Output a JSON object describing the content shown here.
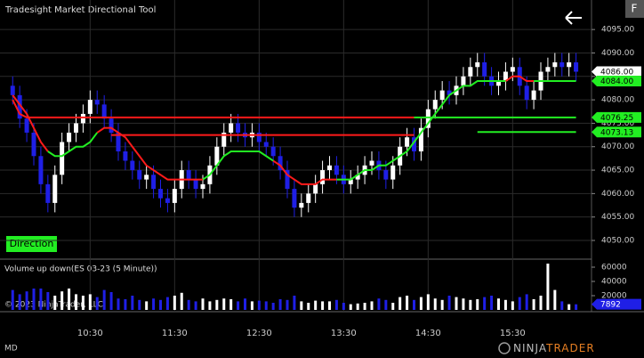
{
  "title": "Tradesight Market Directional Tool",
  "buttons": {
    "f": "F",
    "direction": "Direction"
  },
  "copyright": "© 2023 NinjaTrader, LLC",
  "footer_left": "MD",
  "logo": [
    "NINJA",
    "TRADER"
  ],
  "chart_data": [
    {
      "type": "candlestick",
      "xlim": [
        -1.8,
        82.2
      ],
      "xticks": [
        {
          "value": 11,
          "label": "10:30"
        },
        {
          "value": 23,
          "label": "11:30"
        },
        {
          "value": 35,
          "label": "12:30"
        },
        {
          "value": 47,
          "label": "13:30"
        },
        {
          "value": 59,
          "label": "14:30"
        },
        {
          "value": 71,
          "label": "15:30"
        }
      ],
      "ylim": [
        4046.2,
        4101.3
      ],
      "yticks": [
        {
          "value": 4050,
          "label": "4050.00"
        },
        {
          "value": 4055,
          "label": "4055.00"
        },
        {
          "value": 4060,
          "label": "4060.00"
        },
        {
          "value": 4065,
          "label": "4065.00"
        },
        {
          "value": 4070,
          "label": "4070.00"
        },
        {
          "value": 4075,
          "label": "4075.00"
        },
        {
          "value": 4080,
          "label": "4080.00"
        },
        {
          "value": 4085,
          "label": "4085.00"
        },
        {
          "value": 4090,
          "label": "4090.00"
        },
        {
          "value": 4095,
          "label": "4095.00"
        }
      ],
      "grid": true,
      "up_color": "#ffffff",
      "down_color": "#1f1fe6",
      "open": [
        4083,
        4081,
        4076,
        4073,
        4068,
        4062,
        4058,
        4064,
        4071,
        4073,
        4075,
        4077,
        4080,
        4079,
        4076,
        4073,
        4069,
        4067,
        4065,
        4063,
        4064,
        4061,
        4059,
        4058,
        4061,
        4065,
        4063,
        4061,
        4062,
        4066,
        4070,
        4073,
        4075,
        4073,
        4072,
        4073,
        4071,
        4070,
        4068,
        4065,
        4061,
        4057,
        4058,
        4060,
        4062,
        4065,
        4066,
        4064,
        4062,
        4063,
        4064,
        4066,
        4067,
        4065,
        4063,
        4066,
        4070,
        4072,
        4069,
        4074,
        4078,
        4080,
        4082,
        4081,
        4083,
        4085,
        4087,
        4088,
        4085,
        4083,
        4084,
        4086,
        4087,
        4083,
        4080,
        4082,
        4086,
        4087,
        4088,
        4087,
        4088
      ],
      "high": [
        4085,
        4083,
        4078,
        4075,
        4070,
        4064,
        4066,
        4073,
        4075,
        4077,
        4079,
        4082,
        4082,
        4081,
        4078,
        4075,
        4071,
        4069,
        4067,
        4066,
        4066,
        4063,
        4061,
        4063,
        4067,
        4067,
        4065,
        4064,
        4068,
        4072,
        4075,
        4077,
        4077,
        4075,
        4075,
        4075,
        4073,
        4072,
        4070,
        4067,
        4063,
        4060,
        4062,
        4064,
        4067,
        4068,
        4068,
        4066,
        4065,
        4066,
        4068,
        4069,
        4069,
        4067,
        4068,
        4072,
        4074,
        4074,
        4076,
        4080,
        4082,
        4084,
        4084,
        4085,
        4087,
        4089,
        4090,
        4090,
        4087,
        4086,
        4088,
        4089,
        4089,
        4085,
        4084,
        4088,
        4089,
        4090,
        4090,
        4090,
        4090
      ],
      "low": [
        4079,
        4074,
        4071,
        4066,
        4060,
        4056,
        4056,
        4062,
        4069,
        4071,
        4073,
        4075,
        4077,
        4074,
        4071,
        4067,
        4065,
        4063,
        4061,
        4061,
        4059,
        4057,
        4056,
        4056,
        4059,
        4061,
        4059,
        4059,
        4060,
        4064,
        4068,
        4071,
        4071,
        4070,
        4070,
        4069,
        4068,
        4066,
        4063,
        4059,
        4055,
        4055,
        4056,
        4058,
        4060,
        4063,
        4062,
        4060,
        4060,
        4061,
        4062,
        4064,
        4063,
        4061,
        4061,
        4064,
        4068,
        4067,
        4067,
        4072,
        4076,
        4078,
        4079,
        4079,
        4081,
        4083,
        4085,
        4083,
        4081,
        4081,
        4082,
        4084,
        4081,
        4078,
        4078,
        4080,
        4084,
        4085,
        4085,
        4085,
        4084
      ],
      "close": [
        4081,
        4076,
        4073,
        4068,
        4062,
        4058,
        4064,
        4071,
        4073,
        4075,
        4077,
        4080,
        4079,
        4076,
        4073,
        4069,
        4067,
        4065,
        4063,
        4064,
        4061,
        4059,
        4058,
        4061,
        4065,
        4063,
        4061,
        4062,
        4066,
        4070,
        4073,
        4075,
        4073,
        4072,
        4073,
        4071,
        4070,
        4068,
        4065,
        4061,
        4057,
        4058,
        4060,
        4062,
        4065,
        4066,
        4064,
        4062,
        4063,
        4064,
        4066,
        4067,
        4065,
        4063,
        4066,
        4070,
        4072,
        4069,
        4074,
        4078,
        4080,
        4082,
        4081,
        4083,
        4085,
        4087,
        4088,
        4085,
        4083,
        4084,
        4086,
        4087,
        4083,
        4080,
        4082,
        4086,
        4087,
        4088,
        4087,
        4088,
        4086
      ],
      "lines": [
        {
          "color": "#ff1a1a",
          "values": [
            4080,
            4077,
            4076.25,
            4076.25,
            4076.25,
            4076.25,
            4076.25,
            4076.25,
            4076.25,
            4076.25,
            4076.25,
            4076.25,
            4076.25,
            4076.25,
            4076.25,
            4076.25,
            4076.25,
            4076.25,
            4076.25,
            4076.25,
            4076.25,
            4076.25,
            4076.25,
            4076.25,
            4076.25,
            4076.25,
            4076.25,
            4076.25,
            4076.25,
            4076.25,
            4076.25,
            4076.25,
            4076.25,
            4076.25,
            4076.25,
            4076.25,
            4076.25,
            4076.25,
            4076.25,
            4076.25,
            4076.25,
            4076.25,
            4076.25,
            4076.25,
            4076.25,
            4076.25,
            4076.25,
            4076.25,
            4076.25,
            4076.25,
            4076.25,
            4076.25,
            4076.25,
            4076.25,
            4076.25,
            4076.25,
            4076.25,
            4076.25,
            null,
            null,
            null,
            null,
            null,
            null,
            null,
            null,
            null,
            null,
            null,
            null,
            null,
            null,
            null,
            null,
            null,
            null,
            null,
            null,
            null,
            null,
            null
          ]
        },
        {
          "color": "#22ee22",
          "values": [
            null,
            null,
            null,
            null,
            null,
            null,
            null,
            null,
            null,
            null,
            null,
            null,
            null,
            null,
            null,
            null,
            null,
            null,
            null,
            null,
            null,
            null,
            null,
            null,
            null,
            null,
            null,
            null,
            null,
            null,
            null,
            null,
            null,
            null,
            null,
            null,
            null,
            null,
            null,
            null,
            null,
            null,
            null,
            null,
            null,
            null,
            null,
            null,
            null,
            null,
            null,
            null,
            null,
            null,
            null,
            null,
            null,
            4076.25,
            4076.25,
            4076.25,
            4076.25,
            4076.25,
            4076.25,
            4076.25,
            4076.25,
            4076.25,
            4076.25,
            4076.25,
            4076.25,
            4076.25,
            4076.25,
            4076.25,
            4076.25,
            4076.25,
            4076.25,
            4076.25,
            4076.25,
            4076.25,
            4076.25,
            4076.25,
            4076.25
          ]
        },
        {
          "color": "#ff1a1a",
          "values": [
            null,
            null,
            null,
            null,
            null,
            null,
            null,
            null,
            null,
            null,
            null,
            null,
            null,
            null,
            4072.5,
            4072.5,
            4072.5,
            4072.5,
            4072.5,
            4072.5,
            4072.5,
            4072.5,
            4072.5,
            4072.5,
            4072.5,
            4072.5,
            4072.5,
            4072.5,
            4072.5,
            4072.5,
            4072.5,
            4072.5,
            4072.5,
            4072.5,
            4072.5,
            4072.5,
            4072.5,
            4072.5,
            4072.5,
            4072.5,
            4072.5,
            4072.5,
            4072.5,
            4072.5,
            4072.5,
            4072.5,
            4072.5,
            4072.5,
            4072.5,
            4072.5,
            4072.5,
            4072.5,
            4072.5,
            4072.5,
            4072.5,
            4072.5,
            4072.5,
            4072.5,
            null,
            null,
            null,
            null,
            null,
            null,
            null,
            null,
            null,
            null,
            null,
            null,
            null,
            null,
            null,
            null,
            null,
            null,
            null,
            null,
            null,
            null,
            null
          ]
        },
        {
          "color": "#22ee22",
          "values": [
            null,
            null,
            null,
            null,
            null,
            null,
            null,
            null,
            null,
            null,
            null,
            null,
            null,
            null,
            null,
            null,
            null,
            null,
            null,
            null,
            null,
            null,
            null,
            null,
            null,
            null,
            null,
            null,
            null,
            null,
            null,
            null,
            null,
            null,
            null,
            null,
            null,
            null,
            null,
            null,
            null,
            null,
            null,
            null,
            null,
            null,
            null,
            null,
            null,
            null,
            null,
            null,
            null,
            null,
            null,
            null,
            null,
            null,
            null,
            null,
            null,
            null,
            null,
            null,
            null,
            null,
            4073.13,
            4073.13,
            4073.13,
            4073.13,
            4073.13,
            4073.13,
            4073.13,
            4073.13,
            4073.13,
            4073.13,
            4073.13,
            4073.13,
            4073.13,
            4073.13,
            4073.13
          ]
        },
        {
          "color": "#ff1a1a",
          "values": [
            4081,
            4079,
            4077,
            4074,
            4071,
            4069,
            null,
            null,
            null,
            null,
            null,
            null,
            4073,
            4074,
            4074,
            4073,
            4072,
            4070,
            4068,
            4066,
            4065,
            4064,
            4063,
            4063,
            4063,
            4063,
            4063,
            4063,
            null,
            null,
            null,
            null,
            null,
            null,
            null,
            null,
            null,
            4067,
            4066,
            4064,
            4063,
            4062,
            4062,
            4062,
            4063,
            4063,
            4063,
            null,
            null,
            null,
            null,
            null,
            null,
            null,
            null,
            null,
            null,
            null,
            null,
            null,
            null,
            null,
            null,
            null,
            null,
            null,
            null,
            null,
            null,
            null,
            4084,
            4085,
            4085,
            4084,
            4084,
            null,
            null,
            null,
            null,
            null,
            null
          ]
        },
        {
          "color": "#22ee22",
          "values": [
            null,
            null,
            null,
            null,
            null,
            4069,
            4068,
            4068,
            4069,
            4070,
            4070,
            4071,
            4073,
            null,
            null,
            null,
            null,
            null,
            null,
            null,
            null,
            null,
            null,
            null,
            null,
            null,
            null,
            4063,
            4064,
            4066,
            4068,
            4069,
            4069,
            4069,
            4069,
            4069,
            4068,
            4067,
            null,
            null,
            null,
            null,
            null,
            null,
            null,
            null,
            4063,
            4063,
            4063,
            4064,
            4065,
            4065,
            4066,
            4066,
            4067,
            4068,
            4069,
            4071,
            4073,
            4075,
            4077,
            4079,
            4081,
            4082,
            4083,
            4083,
            4084,
            4084,
            4084,
            4084,
            4084,
            null,
            null,
            null,
            4084,
            4084,
            4084,
            4084,
            4084,
            4084,
            4084
          ]
        }
      ],
      "tags": [
        {
          "value": 4086,
          "label": "4086.00",
          "color": "#ffffff"
        },
        {
          "value": 4084,
          "label": "4084.00",
          "color": "#22ee22"
        },
        {
          "value": 4076.25,
          "label": "4076.25",
          "color": "#22ee22"
        },
        {
          "value": 4073.13,
          "label": "4073.13",
          "color": "#22ee22"
        }
      ]
    },
    {
      "type": "bar",
      "title": "Volume up down(ES 03-23 (5 Minute))",
      "ylim": [
        0,
        70000
      ],
      "yticks": [
        20000,
        40000,
        60000
      ],
      "values": [
        28000,
        22000,
        26000,
        30000,
        30000,
        25000,
        20000,
        26000,
        30000,
        22000,
        20000,
        22000,
        18000,
        28000,
        25000,
        16000,
        15000,
        20000,
        14000,
        12000,
        16000,
        14000,
        18000,
        20000,
        24000,
        14000,
        12000,
        16000,
        12000,
        14000,
        16000,
        15000,
        12000,
        16000,
        12000,
        13000,
        12000,
        10000,
        15000,
        14000,
        20000,
        12000,
        10000,
        13000,
        12000,
        12000,
        14000,
        10000,
        8000,
        9000,
        10000,
        12000,
        16000,
        14000,
        10000,
        18000,
        20000,
        14000,
        18000,
        22000,
        16000,
        14000,
        20000,
        18000,
        16000,
        14000,
        15000,
        18000,
        20000,
        16000,
        14000,
        12000,
        18000,
        22000,
        15000,
        20000,
        65000,
        28000,
        12000,
        8000,
        7892
      ],
      "tags": [
        {
          "value": 7892,
          "label": "7892",
          "color": "#1f1fe6"
        }
      ]
    }
  ]
}
